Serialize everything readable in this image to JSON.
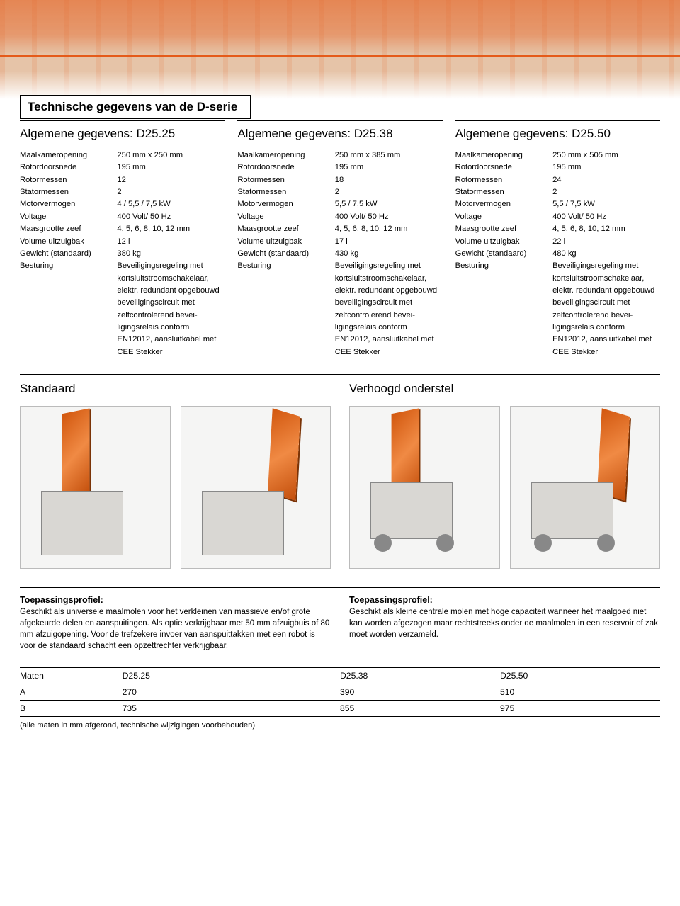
{
  "colors": {
    "accent": "#e55b1a",
    "rule": "#000000",
    "figbg": "#f5f5f4"
  },
  "page_title": "Technische gegevens van de D-serie",
  "spec_labels": {
    "maalkamer": "Maalkameropening",
    "rotordoor": "Rotordoorsnede",
    "rotormessen": "Rotormessen",
    "statormessen": "Statormessen",
    "motorvermogen": "Motorvermogen",
    "voltage": "Voltage",
    "maasgrootte": "Maasgrootte zeef",
    "volume": "Volume uitzuigbak",
    "gewicht": "Gewicht (standaard)",
    "besturing": "Besturing"
  },
  "besturing_text": "Beveiligingsregeling met kortsluitstroom­schakelaar, elektr. redundant opgebouwd beveiligingscircuit met zelfcontrolerend bevei­ligingsrelais conform EN12012, aansluitka­bel met CEE Stekker",
  "models": [
    {
      "heading": "Algemene gegevens: D25.25",
      "values": {
        "maalkamer": "250 mm x 250 mm",
        "rotordoor": "195 mm",
        "rotormessen": "12",
        "statormessen": "2",
        "motorvermogen": "4 / 5,5 / 7,5 kW",
        "voltage": "400 Volt/ 50 Hz",
        "maasgrootte": "4, 5, 6, 8, 10, 12 mm",
        "volume": "12 l",
        "gewicht": "380 kg"
      }
    },
    {
      "heading": "Algemene gegevens: D25.38",
      "values": {
        "maalkamer": "250 mm x 385 mm",
        "rotordoor": "195 mm",
        "rotormessen": "18",
        "statormessen": "2",
        "motorvermogen": "5,5 / 7,5 kW",
        "voltage": "400 Volt/ 50 Hz",
        "maasgrootte": "4, 5, 6, 8, 10, 12 mm",
        "volume": "17 l",
        "gewicht": "430 kg"
      }
    },
    {
      "heading": "Algemene gegevens: D25.50",
      "values": {
        "maalkamer": "250 mm x 505 mm",
        "rotordoor": "195 mm",
        "rotormessen": "24",
        "statormessen": "2",
        "motorvermogen": "5,5 / 7,5 kW",
        "voltage": "400 Volt/ 50 Hz",
        "maasgrootte": "4, 5, 6, 8, 10, 12 mm",
        "volume": "22 l",
        "gewicht": "480 kg"
      }
    }
  ],
  "section_standard": "Standaard",
  "section_raised": "Verhoogd onderstel",
  "profile_heading": "Toepassingsprofiel:",
  "profile_standard": "Geschikt als universele maalmolen voor het verkleinen van massieve en/of grote afgekeurde delen en aanspuitingen. Als optie verkrijgbaar met 50 mm afzuigbuis of 80 mm afzuigopening.\nVoor de trefzekere invoer van aanspuittakken met een robot is voor de standaard schacht een opzettrechter verkrijgbaar.",
  "profile_raised": "Geschikt als kleine centrale molen met hoge capaciteit wanneer het maalgoed niet kan worden afgezogen maar rechtstreeks onder de maalmolen in een reservoir of zak moet worden verzameld.",
  "dim_table": {
    "headers": [
      "Maten",
      "D25.25",
      "D25.38",
      "D25.50"
    ],
    "rows": [
      [
        "A",
        "270",
        "390",
        "510"
      ],
      [
        "B",
        "735",
        "855",
        "975"
      ]
    ]
  },
  "footnote": "(alle maten in mm afgerond, technische wijzigingen voorbehouden)"
}
